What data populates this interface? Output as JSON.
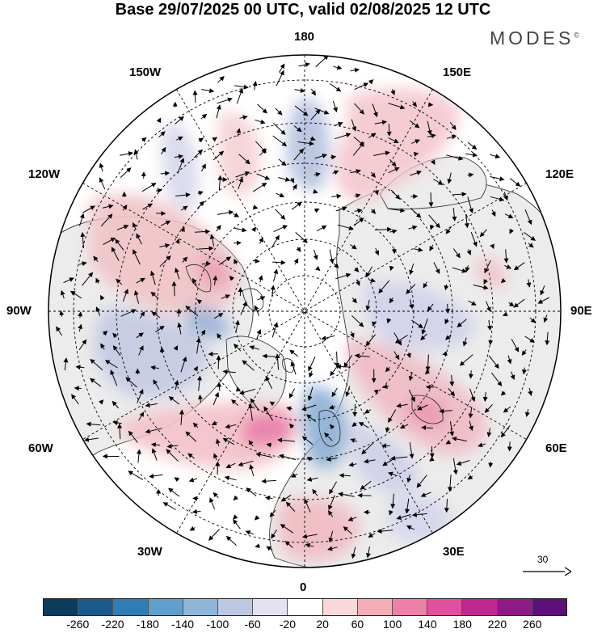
{
  "title": "Base 29/07/2025 00 UTC, valid 02/08/2025 12 UTC",
  "brand": "MODES",
  "brand_mark": "©",
  "lon_labels": {
    "n180": "180",
    "w150": "150W",
    "e150": "150E",
    "w120": "120W",
    "e120": "120E",
    "w90": "90W",
    "e90": "90E",
    "w60": "60W",
    "e60": "60E",
    "w30": "30W",
    "e30": "30E",
    "z0": "0"
  },
  "vector_scale_label": "30",
  "colorbar": {
    "colors": [
      "#0e3a5c",
      "#1a5a8c",
      "#2f7db4",
      "#5f9fcc",
      "#8fb5d9",
      "#bcc7e2",
      "#e3e2f0",
      "#ffffff",
      "#f8d8d8",
      "#f3aeb8",
      "#ee7fa8",
      "#e0509c",
      "#c0288e",
      "#8e1a85",
      "#5c1178"
    ],
    "ticks": [
      "-260",
      "-220",
      "-180",
      "-140",
      "-100",
      "-60",
      "-20",
      "20",
      "60",
      "100",
      "140",
      "180",
      "220",
      "260"
    ]
  }
}
